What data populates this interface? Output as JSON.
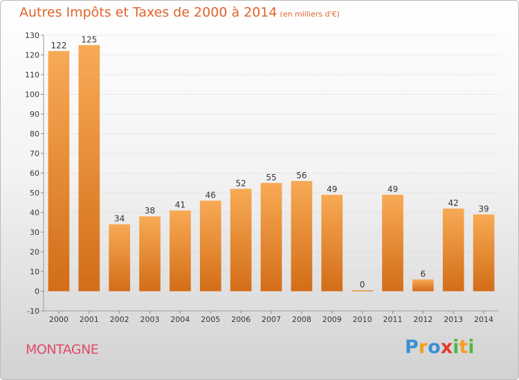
{
  "title": "Autres Impôts et Taxes de 2000 à 2014",
  "unit": "(en milliers d'€)",
  "commune": "MONTAGNE",
  "logo": {
    "letters": [
      "P",
      "r",
      "o",
      "x",
      "i",
      "t",
      "i"
    ],
    "colors": [
      "#3b8fd6",
      "#f0a020",
      "#3b8fd6",
      "#e23c2c",
      "#4db84a",
      "#f0a020",
      "#4db84a"
    ]
  },
  "colors": {
    "bar_light": "#f8aa55",
    "bar_dark": "#d36d17",
    "title": "#e0622a",
    "commune": "#dd4b69"
  },
  "chart_data": {
    "type": "bar",
    "categories": [
      "2000",
      "2001",
      "2002",
      "2003",
      "2004",
      "2005",
      "2006",
      "2007",
      "2008",
      "2009",
      "2010",
      "2011",
      "2012",
      "2013",
      "2014"
    ],
    "values": [
      122,
      125,
      34,
      38,
      41,
      46,
      52,
      55,
      56,
      49,
      0,
      49,
      6,
      42,
      39
    ],
    "title": "Autres Impôts et Taxes de 2000 à 2014",
    "xlabel": "",
    "ylabel": "",
    "ylim": [
      -10,
      130
    ],
    "yticks": [
      -10,
      0,
      10,
      20,
      30,
      40,
      50,
      60,
      70,
      80,
      90,
      100,
      110,
      120,
      130
    ],
    "grid": true,
    "legend": "none"
  }
}
